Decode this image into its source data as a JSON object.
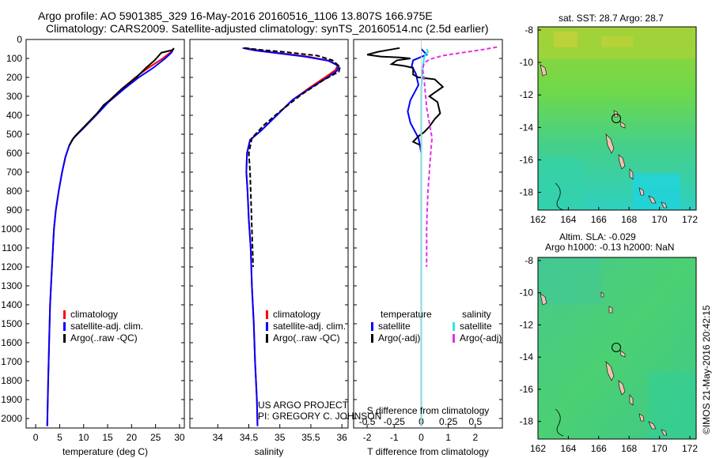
{
  "header": {
    "line1": "Argo profile: AO 5901385_329 16-May-2016 20160516_1106 13.807S 166.975E",
    "line2": "Climatology: CARS2009. Satellite-adjusted climatology: synTS_20160514.nc (2.5d earlier)"
  },
  "colors": {
    "climatology": "#ff0000",
    "satellite": "#0000ff",
    "argo": "#000000",
    "sal_satellite": "#33e6e6",
    "sal_argo": "#e62ee6"
  },
  "chart_data": [
    {
      "type": "line",
      "id": "temperature",
      "xlabel": "temperature (deg C)",
      "ylabel": "",
      "xlim": [
        -2,
        31
      ],
      "ylim": [
        2050,
        0
      ],
      "xticks": [
        "0",
        "5",
        "10",
        "15",
        "20",
        "25",
        "30"
      ],
      "yticks": [
        "0",
        "100",
        "200",
        "300",
        "400",
        "500",
        "600",
        "700",
        "800",
        "900",
        "1000",
        "1100",
        "1200",
        "1300",
        "1400",
        "1500",
        "1600",
        "1700",
        "1800",
        "1900",
        "2000"
      ],
      "legend": [
        "climatology",
        "satellite-adj. clim.",
        "Argo(..raw -QC)"
      ],
      "series": [
        {
          "name": "climatology",
          "points": [
            [
              28.7,
              50
            ],
            [
              28.0,
              70
            ],
            [
              26.5,
              100
            ],
            [
              23.5,
              150
            ],
            [
              20.8,
              200
            ],
            [
              18.0,
              260
            ],
            [
              15.0,
              330
            ],
            [
              12.5,
              400
            ],
            [
              9.8,
              470
            ],
            [
              7.9,
              520
            ],
            [
              7.0,
              560
            ],
            [
              6.2,
              620
            ],
            [
              5.5,
              700
            ],
            [
              4.8,
              800
            ],
            [
              4.2,
              900
            ],
            [
              3.8,
              1000
            ],
            [
              3.4,
              1200
            ],
            [
              3.0,
              1400
            ],
            [
              2.8,
              1600
            ],
            [
              2.6,
              1800
            ],
            [
              2.4,
              2040
            ]
          ]
        },
        {
          "name": "satellite-adj. clim.",
          "points": [
            [
              28.7,
              50
            ],
            [
              28.3,
              70
            ],
            [
              27.0,
              100
            ],
            [
              24.5,
              150
            ],
            [
              21.5,
              200
            ],
            [
              18.5,
              260
            ],
            [
              15.2,
              330
            ],
            [
              12.6,
              400
            ],
            [
              9.9,
              470
            ],
            [
              7.9,
              520
            ],
            [
              7.0,
              560
            ],
            [
              6.2,
              620
            ],
            [
              5.5,
              700
            ],
            [
              4.8,
              800
            ],
            [
              4.2,
              900
            ],
            [
              3.8,
              1000
            ],
            [
              3.4,
              1200
            ],
            [
              3.0,
              1400
            ],
            [
              2.8,
              1600
            ],
            [
              2.6,
              1800
            ],
            [
              2.4,
              2040
            ]
          ]
        },
        {
          "name": "Argo(..raw -QC)",
          "points": [
            [
              28.8,
              45
            ],
            [
              28.6,
              55
            ],
            [
              27.5,
              62
            ],
            [
              26.2,
              70
            ],
            [
              25.5,
              90
            ],
            [
              24.8,
              110
            ],
            [
              23.0,
              150
            ],
            [
              21.0,
              200
            ],
            [
              18.0,
              260
            ],
            [
              15.5,
              320
            ],
            [
              14.2,
              345
            ],
            [
              12.8,
              390
            ],
            [
              10.5,
              450
            ],
            [
              8.4,
              505
            ],
            [
              7.6,
              530
            ],
            [
              7.0,
              560
            ]
          ]
        }
      ]
    },
    {
      "type": "line",
      "id": "salinity",
      "xlabel": "salinity",
      "ylabel": "",
      "xlim": [
        33.55,
        36.1
      ],
      "ylim": [
        2050,
        0
      ],
      "xticks": [
        "34",
        "34.5",
        "35",
        "35.5",
        "36"
      ],
      "legend": [
        "climatology",
        "satellite-adj. clim.",
        "Argo(..raw -QC)"
      ],
      "series": [
        {
          "name": "climatology",
          "points": [
            [
              34.45,
              45
            ],
            [
              34.7,
              60
            ],
            [
              35.0,
              72
            ],
            [
              35.45,
              90
            ],
            [
              35.8,
              112
            ],
            [
              35.93,
              135
            ],
            [
              35.9,
              160
            ],
            [
              35.75,
              195
            ],
            [
              35.5,
              250
            ],
            [
              35.2,
              320
            ],
            [
              34.95,
              400
            ],
            [
              34.7,
              480
            ],
            [
              34.52,
              530
            ],
            [
              34.47,
              600
            ],
            [
              34.46,
              700
            ],
            [
              34.48,
              800
            ],
            [
              34.5,
              950
            ],
            [
              34.53,
              1100
            ],
            [
              34.55,
              1300
            ],
            [
              34.58,
              1500
            ],
            [
              34.6,
              1700
            ],
            [
              34.63,
              1900
            ],
            [
              34.64,
              2040
            ]
          ]
        },
        {
          "name": "satellite-adj. clim.",
          "points": [
            [
              34.4,
              45
            ],
            [
              34.6,
              58
            ],
            [
              34.95,
              72
            ],
            [
              35.4,
              90
            ],
            [
              35.78,
              112
            ],
            [
              35.95,
              140
            ],
            [
              35.92,
              165
            ],
            [
              35.77,
              200
            ],
            [
              35.5,
              255
            ],
            [
              35.2,
              320
            ],
            [
              34.95,
              400
            ],
            [
              34.7,
              480
            ],
            [
              34.52,
              530
            ],
            [
              34.47,
              600
            ],
            [
              34.46,
              700
            ],
            [
              34.48,
              800
            ],
            [
              34.5,
              950
            ],
            [
              34.53,
              1100
            ],
            [
              34.55,
              1300
            ],
            [
              34.58,
              1500
            ],
            [
              34.6,
              1700
            ],
            [
              34.63,
              1900
            ],
            [
              34.64,
              2040
            ]
          ]
        },
        {
          "name": "Argo(..raw -QC)",
          "points": [
            [
              34.43,
              45
            ],
            [
              34.7,
              55
            ],
            [
              35.05,
              65
            ],
            [
              35.6,
              85
            ],
            [
              35.85,
              110
            ],
            [
              35.97,
              145
            ],
            [
              35.95,
              170
            ],
            [
              35.7,
              215
            ],
            [
              35.35,
              290
            ],
            [
              35.0,
              380
            ],
            [
              34.75,
              450
            ],
            [
              34.55,
              520
            ],
            [
              34.5,
              600
            ],
            [
              34.52,
              700
            ],
            [
              34.53,
              800
            ],
            [
              34.55,
              1000
            ],
            [
              34.57,
              1200
            ]
          ]
        }
      ]
    },
    {
      "type": "line",
      "id": "differences",
      "xlabel": "T difference from climatology",
      "xlabel_top": "S difference from climatology",
      "ylabel": "",
      "xlim": [
        -2.5,
        3.0
      ],
      "ylim": [
        2050,
        0
      ],
      "xticks": [
        "-2",
        "-1",
        "0",
        "1",
        "2"
      ],
      "sticks": [
        "-0.5",
        "-0.25",
        "0",
        "0.25",
        "0.5"
      ],
      "legend_temperature_title": "temperature",
      "legend_salinity_title": "salinity",
      "legend": [
        "satellite",
        "Argo(-adj)",
        "satellite",
        "Argo(-adj)"
      ],
      "series": [
        {
          "name": "T satellite",
          "points": [
            [
              0,
              50
            ],
            [
              0.1,
              65
            ],
            [
              0.2,
              80
            ],
            [
              -0.3,
              110
            ],
            [
              -0.35,
              140
            ],
            [
              -0.2,
              180
            ],
            [
              -0.1,
              240
            ],
            [
              -0.4,
              320
            ],
            [
              -0.5,
              380
            ],
            [
              -0.4,
              440
            ],
            [
              -0.1,
              520
            ],
            [
              0,
              600
            ],
            [
              0,
              2040
            ]
          ]
        },
        {
          "name": "T Argo(-adj)",
          "points": [
            [
              -0.8,
              45
            ],
            [
              -1.2,
              55
            ],
            [
              -1.6,
              65
            ],
            [
              -2.0,
              80
            ],
            [
              -1.5,
              90
            ],
            [
              -0.8,
              95
            ],
            [
              -0.4,
              100
            ],
            [
              -0.9,
              110
            ],
            [
              -1.1,
              130
            ],
            [
              -0.6,
              140
            ],
            [
              -0.3,
              150
            ],
            [
              -0.3,
              185
            ],
            [
              -0.1,
              200
            ],
            [
              0.5,
              210
            ],
            [
              0.8,
              250
            ],
            [
              0.5,
              280
            ],
            [
              0.3,
              300
            ],
            [
              0.6,
              330
            ],
            [
              0.7,
              390
            ],
            [
              0.5,
              420
            ],
            [
              0.3,
              460
            ],
            [
              0.1,
              490
            ],
            [
              -0.1,
              510
            ],
            [
              -0.3,
              540
            ],
            [
              0.0,
              560
            ]
          ]
        },
        {
          "name": "S satellite",
          "points": [
            [
              0.2,
              50
            ],
            [
              0.25,
              65
            ],
            [
              0.15,
              80
            ],
            [
              0.1,
              100
            ],
            [
              0.05,
              160
            ],
            [
              0.0,
              260
            ],
            [
              0.0,
              500
            ],
            [
              0.0,
              2040
            ]
          ]
        },
        {
          "name": "S Argo(-adj)",
          "points": [
            [
              2.8,
              40
            ],
            [
              2.2,
              55
            ],
            [
              1.5,
              70
            ],
            [
              0.8,
              85
            ],
            [
              0.3,
              105
            ],
            [
              0.1,
              125
            ],
            [
              0.05,
              160
            ],
            [
              0.1,
              200
            ],
            [
              0.15,
              280
            ],
            [
              0.2,
              360
            ],
            [
              0.3,
              440
            ],
            [
              0.4,
              520
            ],
            [
              0.35,
              600
            ],
            [
              0.3,
              700
            ],
            [
              0.25,
              800
            ],
            [
              0.22,
              900
            ],
            [
              0.2,
              1000
            ],
            [
              0.2,
              1200
            ]
          ]
        }
      ]
    }
  ],
  "maps": [
    {
      "id": "sst-map",
      "title": "sat. SST: 28.7 Argo: 28.7",
      "lat_ticks": [
        "-8",
        "-10",
        "-12",
        "-14",
        "-16",
        "-18"
      ],
      "lon_ticks": [
        "162",
        "164",
        "166",
        "168",
        "170",
        "172"
      ]
    },
    {
      "id": "sla-map",
      "title_line1": "Altim. SLA: -0.029",
      "title_line2": "Argo h1000: -0.13 h2000: NaN",
      "lat_ticks": [
        "-8",
        "-10",
        "-12",
        "-14",
        "-16",
        "-18"
      ],
      "lon_ticks": [
        "162",
        "164",
        "166",
        "168",
        "170",
        "172"
      ]
    }
  ],
  "credit": {
    "line1": "US ARGO PROJECT",
    "line2": "PI: GREGORY C. JOHNSON"
  },
  "stamp": "©IMOS 21-May-2016 20:42:15"
}
